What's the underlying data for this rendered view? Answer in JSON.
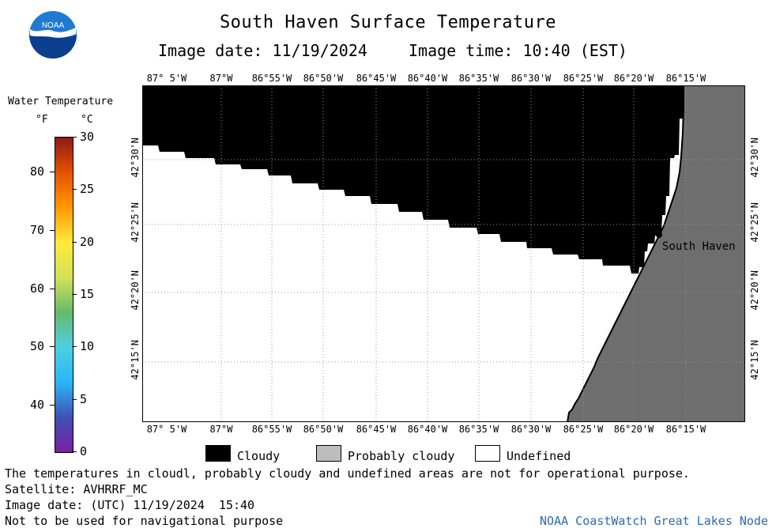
{
  "header": {
    "title": "South Haven Surface Temperature",
    "image_date": "Image date: 11/19/2024",
    "image_time": "Image time: 10:40 (EST)"
  },
  "logo": {
    "text": "NOAA",
    "colors": {
      "blue": "#1f7bd1",
      "dark": "#0d3f8f"
    }
  },
  "color_scale": {
    "title": "Water Temperature",
    "unit_f": "°F",
    "unit_c": "°C",
    "f_ticks": [
      "80",
      "70",
      "60",
      "50",
      "40"
    ],
    "c_ticks": [
      "30",
      "25",
      "20",
      "15",
      "10",
      "5",
      "0"
    ],
    "range_c": [
      0,
      30
    ],
    "gradient": [
      "#7b1fa2",
      "#3f51b5",
      "#29b6f6",
      "#4dd0e1",
      "#66bb6a",
      "#d4e157",
      "#ffeb3b",
      "#ff9800",
      "#e65100",
      "#8b1a1a"
    ]
  },
  "map": {
    "lon_labels": [
      "87° 5'W",
      "87°W",
      "86°55'W",
      "86°50'W",
      "86°45'W",
      "86°40'W",
      "86°35'W",
      "86°30'W",
      "86°25'W",
      "86°20'W",
      "86°15'W"
    ],
    "lat_labels": [
      "42°30'N",
      "42°25'N",
      "42°20'N",
      "42°15'N"
    ],
    "place": "South Haven",
    "colors": {
      "cloudy": "#000000",
      "probably_cloudy": "#6e6e6e",
      "undefined": "#ffffff",
      "coast": "#000000"
    }
  },
  "key": {
    "cloudy": "Cloudy",
    "probably_cloudy": "Probably cloudy",
    "undefined": "Undefined"
  },
  "notes": {
    "line1": "The temperatures in cloudl, probably cloudy and undefined areas are not for operational purpose.",
    "satellite": "Satellite: AVHRRF_MC",
    "utc_date": "Image date: (UTC) 11/19/2024  15:40",
    "nav": "Not to be used for navigational purpose"
  },
  "credit": "NOAA CoastWatch Great Lakes Node"
}
